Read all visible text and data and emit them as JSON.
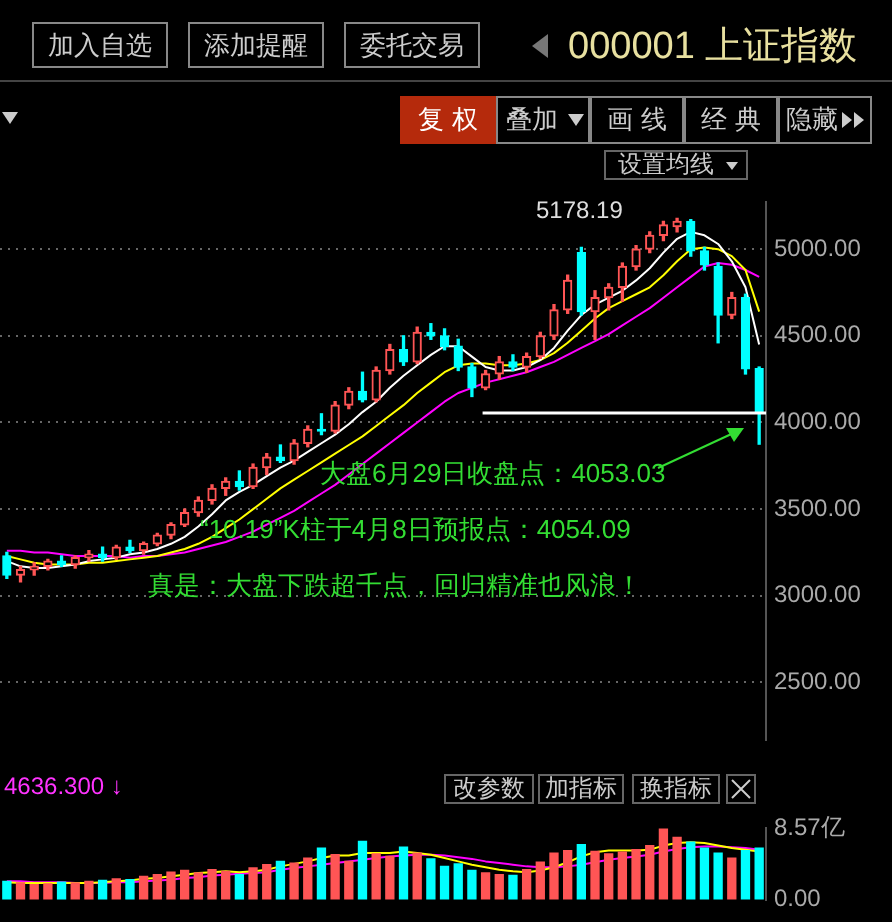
{
  "chart_data": [
    {
      "type": "candlestick",
      "title": "000001 上证指数",
      "categories": [
        null,
        null,
        null,
        null,
        null,
        null,
        null,
        null,
        null,
        null,
        null,
        null,
        null,
        null,
        null,
        null,
        null,
        null,
        null,
        null,
        null,
        null,
        null,
        null,
        null,
        null,
        null,
        null,
        null,
        null,
        null,
        null,
        null,
        null,
        null,
        null,
        null,
        null,
        null,
        null,
        null,
        null,
        null,
        null,
        null,
        null,
        null,
        null,
        null,
        null,
        null,
        null,
        null,
        null,
        null,
        null
      ],
      "ohlc": [
        [
          3230,
          3250,
          3100,
          3120
        ],
        [
          3120,
          3170,
          3080,
          3150
        ],
        [
          3150,
          3190,
          3120,
          3170
        ],
        [
          3170,
          3210,
          3150,
          3200
        ],
        [
          3200,
          3230,
          3170,
          3180
        ],
        [
          3180,
          3230,
          3160,
          3220
        ],
        [
          3220,
          3260,
          3200,
          3240
        ],
        [
          3240,
          3280,
          3200,
          3220
        ],
        [
          3220,
          3290,
          3210,
          3280
        ],
        [
          3280,
          3320,
          3250,
          3260
        ],
        [
          3260,
          3310,
          3240,
          3300
        ],
        [
          3300,
          3360,
          3290,
          3350
        ],
        [
          3350,
          3420,
          3330,
          3410
        ],
        [
          3410,
          3500,
          3400,
          3480
        ],
        [
          3480,
          3570,
          3460,
          3550
        ],
        [
          3550,
          3640,
          3530,
          3620
        ],
        [
          3620,
          3680,
          3580,
          3660
        ],
        [
          3660,
          3720,
          3610,
          3630
        ],
        [
          3630,
          3760,
          3620,
          3740
        ],
        [
          3740,
          3820,
          3700,
          3800
        ],
        [
          3800,
          3870,
          3770,
          3780
        ],
        [
          3780,
          3900,
          3760,
          3880
        ],
        [
          3880,
          3980,
          3860,
          3960
        ],
        [
          3960,
          4050,
          3930,
          3950
        ],
        [
          3950,
          4120,
          3940,
          4100
        ],
        [
          4100,
          4200,
          4080,
          4180
        ],
        [
          4180,
          4290,
          4120,
          4130
        ],
        [
          4130,
          4320,
          4120,
          4300
        ],
        [
          4300,
          4450,
          4280,
          4420
        ],
        [
          4420,
          4500,
          4330,
          4350
        ],
        [
          4350,
          4550,
          4340,
          4520
        ],
        [
          4520,
          4570,
          4480,
          4500
        ],
        [
          4500,
          4540,
          4420,
          4440
        ],
        [
          4440,
          4480,
          4300,
          4320
        ],
        [
          4320,
          4340,
          4150,
          4200
        ],
        [
          4200,
          4300,
          4190,
          4280
        ],
        [
          4280,
          4380,
          4250,
          4350
        ],
        [
          4350,
          4390,
          4300,
          4320
        ],
        [
          4320,
          4400,
          4290,
          4380
        ],
        [
          4380,
          4520,
          4370,
          4500
        ],
        [
          4500,
          4680,
          4480,
          4650
        ],
        [
          4650,
          4850,
          4630,
          4820
        ],
        [
          4980,
          5010,
          4620,
          4640
        ],
        [
          4640,
          4760,
          4480,
          4720
        ],
        [
          4720,
          4800,
          4650,
          4780
        ],
        [
          4780,
          4920,
          4700,
          4900
        ],
        [
          4900,
          5020,
          4880,
          5000
        ],
        [
          5000,
          5100,
          4980,
          5080
        ],
        [
          5080,
          5160,
          5050,
          5140
        ],
        [
          5130,
          5178.19,
          5100,
          5160
        ],
        [
          5160,
          5170,
          4960,
          4990
        ],
        [
          4990,
          5010,
          4880,
          4910
        ],
        [
          4900,
          4920,
          4460,
          4620
        ],
        [
          4620,
          4750,
          4600,
          4720
        ],
        [
          4720,
          4740,
          4280,
          4310
        ],
        [
          4310,
          4320,
          3875,
          4053.03
        ]
      ],
      "colors": [
        "#00ffff",
        "#ff5555",
        "#ff5555",
        "#ff5555",
        "#00ffff",
        "#ff5555",
        "#ff5555",
        "#00ffff",
        "#ff5555",
        "#00ffff",
        "#ff5555",
        "#ff5555",
        "#ff5555",
        "#ff5555",
        "#ff5555",
        "#ff5555",
        "#ff5555",
        "#00ffff",
        "#ff5555",
        "#ff5555",
        "#00ffff",
        "#ff5555",
        "#ff5555",
        "#00ffff",
        "#ff5555",
        "#ff5555",
        "#00ffff",
        "#ff5555",
        "#ff5555",
        "#00ffff",
        "#ff5555",
        "#00ffff",
        "#00ffff",
        "#00ffff",
        "#00ffff",
        "#ff5555",
        "#ff5555",
        "#00ffff",
        "#ff5555",
        "#ff5555",
        "#ff5555",
        "#ff5555",
        "#00ffff",
        "#ff5555",
        "#ff5555",
        "#ff5555",
        "#ff5555",
        "#ff5555",
        "#ff5555",
        "#ff5555",
        "#00ffff",
        "#00ffff",
        "#00ffff",
        "#ff5555",
        "#00ffff",
        "#00ffff"
      ],
      "series": [
        {
          "type": "line",
          "color": "#ffffff",
          "values": [
            3200,
            3170,
            3160,
            3160,
            3170,
            3180,
            3200,
            3210,
            3220,
            3240,
            3250,
            3270,
            3300,
            3340,
            3400,
            3470,
            3550,
            3600,
            3640,
            3690,
            3740,
            3780,
            3830,
            3880,
            3930,
            3990,
            4060,
            4120,
            4200,
            4270,
            4330,
            4390,
            4440,
            4440,
            4380,
            4320,
            4300,
            4300,
            4320,
            4360,
            4430,
            4530,
            4620,
            4680,
            4720,
            4760,
            4820,
            4890,
            4980,
            5060,
            5100,
            5080,
            5030,
            4930,
            4780,
            4450
          ]
        },
        {
          "type": "line",
          "color": "#ffff00",
          "values": [
            3230,
            3210,
            3190,
            3180,
            3180,
            3180,
            3190,
            3190,
            3200,
            3210,
            3220,
            3230,
            3250,
            3270,
            3300,
            3340,
            3390,
            3440,
            3500,
            3560,
            3620,
            3670,
            3720,
            3770,
            3820,
            3870,
            3920,
            3980,
            4040,
            4100,
            4170,
            4230,
            4290,
            4330,
            4340,
            4340,
            4330,
            4330,
            4340,
            4360,
            4400,
            4460,
            4530,
            4600,
            4660,
            4700,
            4740,
            4780,
            4850,
            4930,
            5000,
            5010,
            5000,
            4960,
            4880,
            4640
          ]
        },
        {
          "type": "line",
          "color": "#ff00ff",
          "values": [
            3260,
            3260,
            3250,
            3250,
            3240,
            3230,
            3230,
            3230,
            3230,
            3220,
            3230,
            3230,
            3240,
            3250,
            3270,
            3290,
            3310,
            3340,
            3370,
            3410,
            3450,
            3490,
            3540,
            3590,
            3640,
            3700,
            3760,
            3820,
            3880,
            3940,
            4000,
            4060,
            4120,
            4170,
            4200,
            4230,
            4250,
            4270,
            4290,
            4320,
            4350,
            4390,
            4430,
            4470,
            4510,
            4560,
            4610,
            4660,
            4720,
            4780,
            4840,
            4900,
            4920,
            4910,
            4880,
            4840
          ]
        }
      ],
      "ylim": [
        2170,
        5270
      ],
      "yticks": [
        {
          "value": 2500,
          "label": "2500.00"
        },
        {
          "value": 3000,
          "label": "3000.00"
        },
        {
          "value": 3500,
          "label": "3500.00"
        },
        {
          "value": 4000,
          "label": "4000.00"
        },
        {
          "value": 4500,
          "label": "4500.00"
        },
        {
          "value": 5000,
          "label": "5000.00"
        }
      ],
      "grid": "y",
      "tick_labels": "y",
      "ref_lines": [
        {
          "axis": "y",
          "value": 4054.09,
          "color": "#ffffff"
        }
      ],
      "annotations": [
        "加入自选",
        "添加提醒",
        "委托交易",
        "复 权",
        "叠加",
        "画 线",
        "经 典",
        "隐藏",
        "设置均线",
        "5178.19",
        "大盘6月29日收盘点：4053.03",
        "“10.19”K柱于4月8日预报点：4054.09",
        "真是：大盘下跌超千点，回归精准也风浪！"
      ]
    },
    {
      "type": "bar",
      "categories": [
        null,
        null,
        null,
        null,
        null,
        null,
        null,
        null,
        null,
        null,
        null,
        null,
        null,
        null,
        null,
        null,
        null,
        null,
        null,
        null,
        null,
        null,
        null,
        null,
        null,
        null,
        null,
        null,
        null,
        null,
        null,
        null,
        null,
        null,
        null,
        null,
        null,
        null,
        null,
        null,
        null,
        null,
        null,
        null,
        null,
        null,
        null,
        null,
        null,
        null,
        null,
        null,
        null,
        null,
        null,
        null
      ],
      "values": [
        2.2,
        2.0,
        1.8,
        1.9,
        2.1,
        2.0,
        2.2,
        2.3,
        2.5,
        2.4,
        2.8,
        3.0,
        3.3,
        3.5,
        3.2,
        3.6,
        3.4,
        3.0,
        3.8,
        4.2,
        4.6,
        4.4,
        5.0,
        6.2,
        5.4,
        4.6,
        7.0,
        5.5,
        5.2,
        6.3,
        5.6,
        4.9,
        4.0,
        4.3,
        3.5,
        3.2,
        3.0,
        2.9,
        3.6,
        4.5,
        5.6,
        5.9,
        6.6,
        5.8,
        5.5,
        5.7,
        6.0,
        6.5,
        8.57,
        7.5,
        6.9,
        6.2,
        5.6,
        5.0,
        5.9,
        6.2
      ],
      "colors": [
        "#00ffff",
        "#ff5555",
        "#ff5555",
        "#ff5555",
        "#00ffff",
        "#ff5555",
        "#ff5555",
        "#00ffff",
        "#ff5555",
        "#00ffff",
        "#ff5555",
        "#ff5555",
        "#ff5555",
        "#ff5555",
        "#ff5555",
        "#ff5555",
        "#ff5555",
        "#00ffff",
        "#ff5555",
        "#ff5555",
        "#00ffff",
        "#ff5555",
        "#ff5555",
        "#00ffff",
        "#ff5555",
        "#ff5555",
        "#00ffff",
        "#ff5555",
        "#ff5555",
        "#00ffff",
        "#ff5555",
        "#00ffff",
        "#00ffff",
        "#00ffff",
        "#00ffff",
        "#ff5555",
        "#ff5555",
        "#00ffff",
        "#ff5555",
        "#ff5555",
        "#ff5555",
        "#ff5555",
        "#00ffff",
        "#ff5555",
        "#ff5555",
        "#ff5555",
        "#ff5555",
        "#ff5555",
        "#ff5555",
        "#ff5555",
        "#00ffff",
        "#00ffff",
        "#00ffff",
        "#ff5555",
        "#00ffff",
        "#00ffff"
      ],
      "series": [
        {
          "type": "line",
          "color": "#ffff00",
          "values": [
            2.1,
            2.0,
            2.0,
            2.0,
            2.0,
            2.0,
            2.0,
            2.1,
            2.2,
            2.3,
            2.5,
            2.6,
            2.8,
            3.0,
            3.2,
            3.3,
            3.4,
            3.3,
            3.4,
            3.6,
            4.0,
            4.3,
            4.6,
            5.0,
            5.3,
            5.3,
            5.6,
            5.6,
            5.6,
            5.8,
            5.6,
            5.4,
            5.0,
            4.6,
            4.2,
            3.9,
            3.6,
            3.4,
            3.3,
            3.5,
            3.9,
            4.5,
            5.2,
            5.7,
            5.9,
            5.9,
            5.9,
            6.0,
            6.5,
            6.8,
            6.9,
            6.8,
            6.5,
            6.2,
            6.0,
            5.8
          ]
        },
        {
          "type": "line",
          "color": "#ff00ff",
          "values": [
            2.2,
            2.2,
            2.1,
            2.1,
            2.1,
            2.0,
            2.0,
            2.0,
            2.1,
            2.1,
            2.2,
            2.3,
            2.4,
            2.6,
            2.7,
            2.9,
            3.0,
            3.1,
            3.2,
            3.3,
            3.6,
            3.8,
            4.0,
            4.2,
            4.4,
            4.6,
            4.8,
            5.0,
            5.2,
            5.3,
            5.4,
            5.4,
            5.3,
            5.1,
            4.9,
            4.6,
            4.4,
            4.2,
            4.0,
            3.9,
            3.9,
            4.0,
            4.2,
            4.5,
            4.8,
            5.0,
            5.2,
            5.4,
            5.8,
            6.1,
            6.3,
            6.4,
            6.4,
            6.3,
            6.2,
            6.0
          ]
        }
      ],
      "ylim": [
        0,
        8.57
      ],
      "yticks": [
        {
          "value": 0,
          "label": "0.00"
        },
        {
          "value": 8.57,
          "label": "8.57亿"
        }
      ],
      "tick_labels": "y",
      "annotations": [
        "4636.300 ↓",
        "改参数",
        "加指标",
        "换指标"
      ]
    }
  ]
}
